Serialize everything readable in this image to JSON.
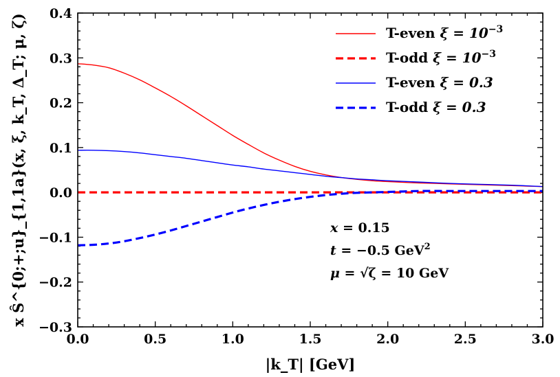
{
  "chart_data": {
    "type": "line",
    "title": "",
    "xlabel": "|k_T| [GeV]",
    "ylabel": "x Ŝ^{0;+;u}_{1,1a}(x, ξ, k_T, Δ_T; μ, ζ)",
    "xlim": [
      0.0,
      3.0
    ],
    "ylim": [
      -0.3,
      0.4
    ],
    "x_ticks": [
      0.0,
      0.5,
      1.0,
      1.5,
      2.0,
      2.5,
      3.0
    ],
    "x_tick_labels": [
      "0.0",
      "0.5",
      "1.0",
      "1.5",
      "2.0",
      "2.5",
      "3.0"
    ],
    "y_ticks": [
      -0.3,
      -0.2,
      -0.1,
      0.0,
      0.1,
      0.2,
      0.3,
      0.4
    ],
    "y_tick_labels": [
      "−0.3",
      "−0.2",
      "−0.1",
      "0.0",
      "0.1",
      "0.2",
      "0.3",
      "0.4"
    ],
    "legend_position": "top-right",
    "series": [
      {
        "name": "T-even ξ = 10^{−3}",
        "label_main": "T-even",
        "label_sym": "ξ = 10",
        "label_exp": "−3",
        "color": "#ff0000",
        "dash": "solid",
        "x": [
          0.0,
          0.1,
          0.2,
          0.3,
          0.4,
          0.5,
          0.6,
          0.7,
          0.8,
          0.9,
          1.0,
          1.1,
          1.2,
          1.3,
          1.4,
          1.5,
          1.6,
          1.7,
          1.8,
          1.9,
          2.0,
          2.2,
          2.4,
          2.6,
          2.8,
          3.0
        ],
        "y": [
          0.287,
          0.284,
          0.278,
          0.266,
          0.251,
          0.233,
          0.214,
          0.193,
          0.171,
          0.149,
          0.127,
          0.107,
          0.088,
          0.072,
          0.058,
          0.047,
          0.039,
          0.033,
          0.029,
          0.026,
          0.024,
          0.021,
          0.019,
          0.017,
          0.015,
          0.013
        ]
      },
      {
        "name": "T-odd ξ = 10^{−3}",
        "label_main": "T-odd",
        "label_sym": "ξ = 10",
        "label_exp": "−3",
        "color": "#ff0000",
        "dash": "dashed",
        "x": [
          0.0,
          1.0,
          2.0,
          3.0
        ],
        "y": [
          0.0,
          0.0,
          0.0,
          0.0
        ]
      },
      {
        "name": "T-even ξ = 0.3",
        "label_main": "T-even",
        "label_sym": "ξ = 0.3",
        "label_exp": "",
        "color": "#0000ff",
        "dash": "solid",
        "x": [
          0.0,
          0.1,
          0.2,
          0.3,
          0.4,
          0.5,
          0.6,
          0.7,
          0.8,
          0.9,
          1.0,
          1.1,
          1.2,
          1.3,
          1.4,
          1.5,
          1.6,
          1.7,
          1.8,
          1.9,
          2.0,
          2.2,
          2.4,
          2.6,
          2.8,
          3.0
        ],
        "y": [
          0.094,
          0.094,
          0.093,
          0.091,
          0.088,
          0.084,
          0.08,
          0.076,
          0.071,
          0.066,
          0.061,
          0.057,
          0.052,
          0.048,
          0.044,
          0.04,
          0.036,
          0.033,
          0.03,
          0.028,
          0.026,
          0.023,
          0.02,
          0.018,
          0.016,
          0.013
        ]
      },
      {
        "name": "T-odd ξ = 0.3",
        "label_main": "T-odd",
        "label_sym": "ξ = 0.3",
        "label_exp": "",
        "color": "#0000ff",
        "dash": "dashed",
        "x": [
          0.0,
          0.1,
          0.2,
          0.3,
          0.4,
          0.5,
          0.6,
          0.7,
          0.8,
          0.9,
          1.0,
          1.1,
          1.2,
          1.3,
          1.4,
          1.5,
          1.6,
          1.7,
          1.8,
          1.9,
          2.0,
          2.1,
          2.2,
          2.4,
          2.6,
          2.8,
          3.0
        ],
        "y": [
          -0.118,
          -0.117,
          -0.114,
          -0.109,
          -0.102,
          -0.094,
          -0.085,
          -0.075,
          -0.065,
          -0.055,
          -0.045,
          -0.036,
          -0.028,
          -0.021,
          -0.015,
          -0.01,
          -0.006,
          -0.003,
          -0.001,
          0.0,
          0.001,
          0.002,
          0.003,
          0.003,
          0.003,
          0.003,
          0.003
        ]
      }
    ],
    "annotations": [
      {
        "lhs": "x",
        "rhs": " = 0.15"
      },
      {
        "lhs": "t",
        "rhs": " = −0.5 GeV",
        "sup": "2"
      },
      {
        "lhs": "μ",
        "rhs": " = √ζ = 10 GeV"
      }
    ]
  }
}
